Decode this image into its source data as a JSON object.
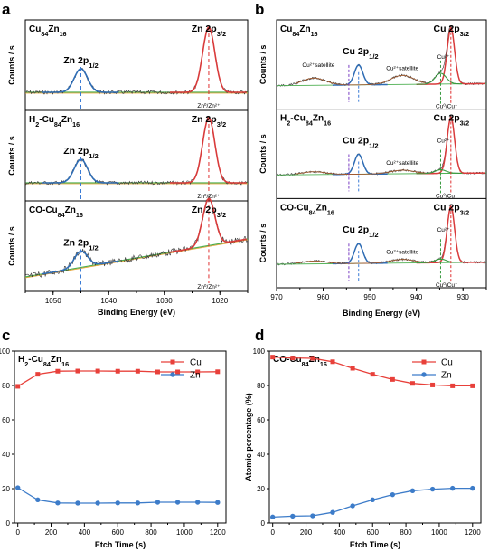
{
  "chart_data": [
    {
      "panel": "a",
      "type": "line",
      "xlabel": "Binding Energy (eV)",
      "ylabel": "Counts / s",
      "xlim": [
        1055,
        1015
      ],
      "x_ticks": [
        1050,
        1040,
        1030,
        1020
      ],
      "x_tick_labels": [
        "1050",
        "1040",
        "1030",
        "1020"
      ],
      "subplots": [
        {
          "title_base": "Cu",
          "title_sub1": "84",
          "title_mid": "Zn",
          "title_sub2": "16",
          "peak_labels": [
            {
              "base": "Zn 2p",
              "sub": "1/2",
              "x": 1045
            },
            {
              "base": "Zn 2p",
              "sub": "3/2",
              "x": 1022
            }
          ],
          "annotation": "Zn⁰/Zn²⁺"
        },
        {
          "title_base": "H",
          "title_sub0": "2",
          "title_prefix": "-Cu",
          "title_sub1": "84",
          "title_mid": "Zn",
          "title_sub2": "16",
          "peak_labels": [
            {
              "base": "Zn 2p",
              "sub": "1/2",
              "x": 1045
            },
            {
              "base": "Zn 2p",
              "sub": "3/2",
              "x": 1022
            }
          ],
          "annotation": "Zn⁰/Zn²⁺"
        },
        {
          "title_base": "CO-Cu",
          "title_sub1": "84",
          "title_mid": "Zn",
          "title_sub2": "16",
          "peak_labels": [
            {
              "base": "Zn 2p",
              "sub": "1/2",
              "x": 1045
            },
            {
              "base": "Zn 2p",
              "sub": "3/2",
              "x": 1022
            }
          ],
          "annotation": "Zn⁰/Zn²⁺"
        }
      ],
      "colors": {
        "raw": "#333333",
        "fit": "#2f6db5",
        "fit2": "#d93b3b",
        "bg": "#4caf50",
        "bg2": "#e8a030",
        "dash1": "#3a7bd5",
        "dash2": "#e03030"
      }
    },
    {
      "panel": "b",
      "type": "line",
      "xlabel": "Binding Energy (eV)",
      "ylabel": "Counts / s",
      "xlim": [
        970,
        925
      ],
      "x_ticks": [
        970,
        960,
        950,
        940,
        930
      ],
      "x_tick_labels": [
        "970",
        "960",
        "950",
        "940",
        "930"
      ],
      "subplots": [
        {
          "title_base": "Cu",
          "title_sub1": "84",
          "title_mid": "Zn",
          "title_sub2": "16",
          "peak_labels": [
            {
              "base": "Cu 2p",
              "sub": "1/2",
              "x": 952
            },
            {
              "base": "Cu 2p",
              "sub": "3/2",
              "x": 932.5
            }
          ],
          "satellite_left": "Cu²⁺satellite",
          "satellite_right": "Cu²⁺satellite",
          "cu2_label": "Cu²⁺",
          "annotation": "Cu⁰/Cu⁺"
        },
        {
          "title_base": "H",
          "title_sub0": "2",
          "title_prefix": "-Cu",
          "title_sub1": "84",
          "title_mid": "Zn",
          "title_sub2": "16",
          "peak_labels": [
            {
              "base": "Cu 2p",
              "sub": "1/2",
              "x": 952
            },
            {
              "base": "Cu 2p",
              "sub": "3/2",
              "x": 932.5
            }
          ],
          "satellite_right": "Cu²⁺satellite",
          "cu2_label": "Cu²⁺",
          "annotation": "Cu⁰/Cu⁺"
        },
        {
          "title_base": "CO-Cu",
          "title_sub1": "84",
          "title_mid": "Zn",
          "title_sub2": "16",
          "peak_labels": [
            {
              "base": "Cu 2p",
              "sub": "1/2",
              "x": 952
            },
            {
              "base": "Cu 2p",
              "sub": "3/2",
              "x": 932.5
            }
          ],
          "satellite_right": "Cu²⁺satellite",
          "cu2_label": "Cu²⁺",
          "annotation": "Cu⁰/Cu⁺"
        }
      ]
    },
    {
      "panel": "c",
      "type": "line",
      "title_base": "H",
      "title_sub0": "2",
      "title_prefix": "-Cu",
      "title_sub1": "84",
      "title_mid": "Zn",
      "title_sub2": "16",
      "xlabel": "Etch Time (s)",
      "ylabel": "Atomic percentage (%)",
      "xlim": [
        -20,
        1250
      ],
      "ylim": [
        0,
        100
      ],
      "x_ticks": [
        0,
        100,
        200,
        300,
        400,
        500,
        600,
        700,
        800,
        900,
        1000,
        1100,
        1200
      ],
      "x_tick_labels": [
        "0",
        "",
        "200",
        "",
        "400",
        "",
        "600",
        "",
        "800",
        "",
        "1000",
        "",
        "1200"
      ],
      "y_ticks": [
        0,
        20,
        40,
        60,
        80,
        100
      ],
      "y_tick_labels": [
        "0",
        "20",
        "40",
        "60",
        "80",
        "100"
      ],
      "x": [
        0,
        120,
        240,
        360,
        480,
        600,
        720,
        840,
        960,
        1080,
        1200
      ],
      "series": [
        {
          "name": "Cu",
          "color": "#e8403a",
          "marker": "square",
          "values": [
            79.5,
            86.5,
            88.3,
            88.4,
            88.4,
            88.3,
            88.3,
            87.9,
            87.9,
            87.9,
            88.0
          ]
        },
        {
          "name": "Zn",
          "color": "#3d7cc9",
          "marker": "circle",
          "values": [
            20.5,
            13.5,
            11.7,
            11.6,
            11.6,
            11.7,
            11.7,
            12.1,
            12.1,
            12.1,
            12.0
          ]
        }
      ],
      "legend": "top-right"
    },
    {
      "panel": "d",
      "type": "line",
      "title_base": "CO-Cu",
      "title_sub1": "84",
      "title_mid": "Zn",
      "title_sub2": "16",
      "xlabel": "Etch Time (s)",
      "ylabel": "Atomic percentage (%)",
      "xlim": [
        -20,
        1250
      ],
      "ylim": [
        0,
        100
      ],
      "x_ticks": [
        0,
        100,
        200,
        300,
        400,
        500,
        600,
        700,
        800,
        900,
        1000,
        1100,
        1200
      ],
      "x_tick_labels": [
        "0",
        "",
        "200",
        "",
        "400",
        "",
        "600",
        "",
        "800",
        "",
        "1000",
        "",
        "1200"
      ],
      "y_ticks": [
        0,
        20,
        40,
        60,
        80,
        100
      ],
      "y_tick_labels": [
        "0",
        "20",
        "40",
        "60",
        "80",
        "100"
      ],
      "x": [
        0,
        120,
        240,
        360,
        480,
        600,
        720,
        840,
        960,
        1080,
        1200
      ],
      "series": [
        {
          "name": "Cu",
          "color": "#e8403a",
          "marker": "square",
          "values": [
            96.5,
            96.0,
            95.8,
            93.8,
            90.0,
            86.5,
            83.5,
            81.2,
            80.3,
            79.8,
            79.8
          ]
        },
        {
          "name": "Zn",
          "color": "#3d7cc9",
          "marker": "circle",
          "values": [
            3.5,
            4.0,
            4.2,
            6.2,
            10.0,
            13.5,
            16.5,
            18.8,
            19.7,
            20.2,
            20.2
          ]
        }
      ],
      "legend": "top-right"
    }
  ]
}
